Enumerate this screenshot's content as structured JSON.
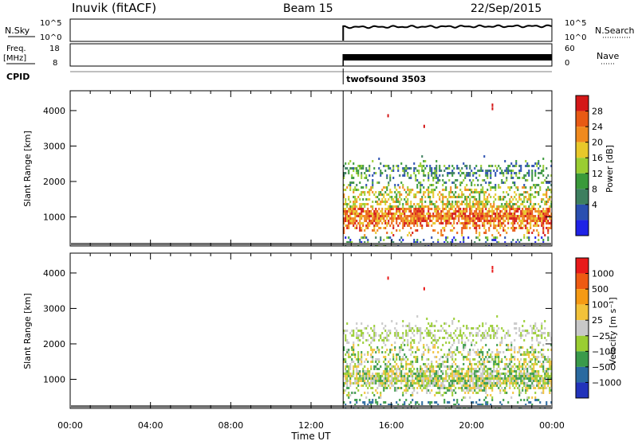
{
  "header": {
    "station": "Inuvik (fitACF)",
    "beam": "Beam 15",
    "date": "22/Sep/2015"
  },
  "panels": {
    "nsky": {
      "label": "N.Sky",
      "left_ticks": [
        "10^5",
        "10^0"
      ],
      "right_ticks": [
        "10^5",
        "10^0"
      ],
      "right_label": "N.Search"
    },
    "freq": {
      "label_line1": "Freq.",
      "label_line2": "[MHz]",
      "left_ticks": [
        "18",
        "8"
      ],
      "right_ticks": [
        "60",
        "0"
      ],
      "right_label": "Nave"
    },
    "cpid": {
      "label": "CPID",
      "program": "twofsound 3503"
    }
  },
  "colors": {
    "power": [
      "#1f22e6",
      "#2a4fb0",
      "#3d7f5f",
      "#3a9a3a",
      "#9acd32",
      "#e8c82a",
      "#f08a1e",
      "#e85a14",
      "#d41818"
    ],
    "velocity": [
      "#e81a1a",
      "#ee5a12",
      "#f59a14",
      "#f2c23a",
      "#c8c8c8",
      "#9acd32",
      "#3a9a4a",
      "#2a6aa0",
      "#2233bb"
    ],
    "ground": "#6e6e6e"
  },
  "chart_data": [
    {
      "type": "heatmap",
      "name": "power",
      "ylabel": "Slant Range [km]",
      "xlim": [
        0,
        24
      ],
      "ylim": [
        180,
        4560
      ],
      "yticks": [
        1000,
        2000,
        3000,
        4000
      ],
      "colorbar": {
        "label": "Power [dB]",
        "ticks": [
          "28",
          "24",
          "20",
          "16",
          "12",
          "8",
          "4"
        ]
      },
      "data_start_hour": 13.6
    },
    {
      "type": "heatmap",
      "name": "velocity",
      "ylabel": "Slant Range [km]",
      "xlabel": "Time UT",
      "xlim": [
        0,
        24
      ],
      "ylim": [
        180,
        4560
      ],
      "yticks": [
        1000,
        2000,
        3000,
        4000
      ],
      "xticks": [
        "00:00",
        "04:00",
        "08:00",
        "12:00",
        "16:00",
        "20:00",
        "00:00"
      ],
      "colorbar": {
        "label": "Velocity [m s⁻¹]",
        "ticks": [
          "1000",
          "500",
          "100",
          "25",
          "−25",
          "−100",
          "−500",
          "−1000"
        ]
      },
      "data_start_hour": 13.6
    }
  ]
}
